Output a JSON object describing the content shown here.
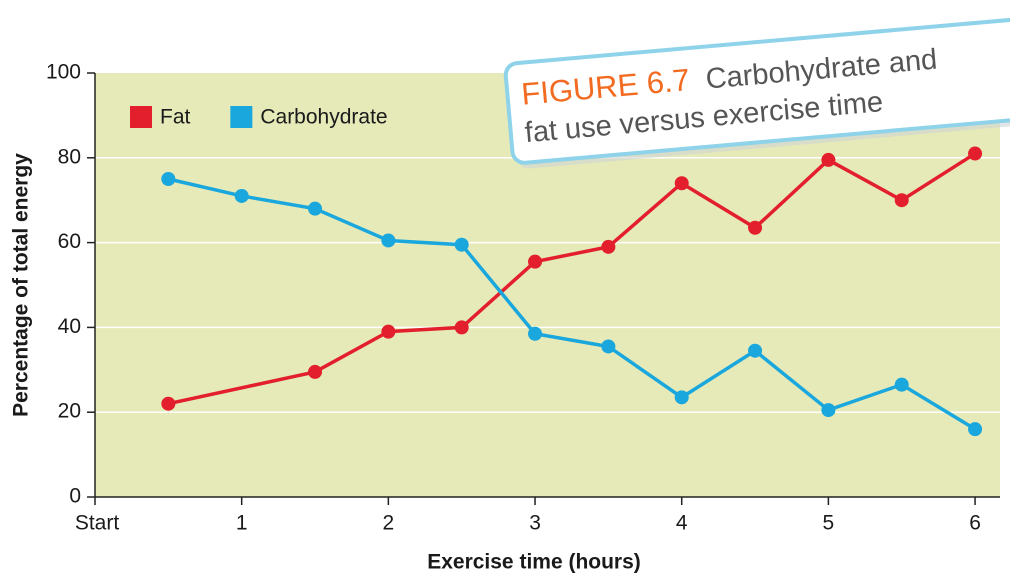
{
  "chart_data": {
    "type": "line",
    "figure_label": "FIGURE 6.7",
    "caption": [
      "Carbohydrate and",
      "fat use versus exercise time"
    ],
    "xlabel": "Exercise time (hours)",
    "ylabel": "Percentage of total energy",
    "series": [
      {
        "name": "Fat",
        "color": "#e31f2d",
        "x": [
          0.5,
          1.5,
          2,
          2.5,
          3,
          3.5,
          4,
          4.5,
          5,
          5.5,
          6
        ],
        "values": [
          22,
          29.5,
          39,
          40,
          55.5,
          59,
          74,
          63.5,
          79.5,
          70,
          81
        ]
      },
      {
        "name": "Carbohydrate",
        "color": "#19a7dd",
        "x": [
          0.5,
          1,
          1.5,
          2,
          2.5,
          3,
          3.5,
          4,
          4.5,
          5,
          5.5,
          6
        ],
        "values": [
          75,
          71,
          68,
          60.5,
          59.5,
          38.5,
          35.5,
          23.5,
          34.5,
          20.5,
          26.5,
          16
        ]
      }
    ],
    "xlim": [
      0,
      6.17
    ],
    "xticks": [
      {
        "value": 0,
        "label": "Start"
      },
      1,
      2,
      3,
      4,
      5,
      6
    ],
    "ylim": [
      0,
      100
    ],
    "yticks": [
      0,
      20,
      40,
      60,
      80,
      100
    ],
    "grid": true,
    "legend": "top-left"
  }
}
